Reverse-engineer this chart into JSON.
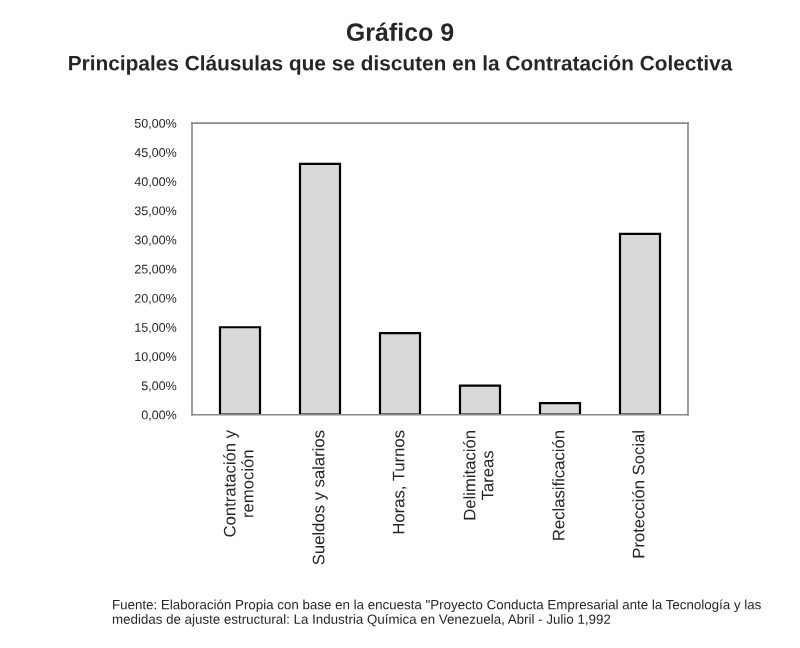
{
  "chart_data": {
    "type": "bar",
    "title": "Gráfico 9",
    "subtitle": "Principales Cláusulas que se discuten en la Contratación Colectiva",
    "categories": [
      "Contratación y\nremoción",
      "Sueldos y salarios",
      "Horas, Turnos",
      "Delimitación\nTareas",
      "Reclasificación",
      "Protección Social"
    ],
    "values": [
      15,
      43,
      14,
      5,
      2,
      31
    ],
    "color": "#d9d9d9",
    "ylim": [
      0,
      50
    ],
    "yticks": [
      {
        "value": 0,
        "label": "0,00%"
      },
      {
        "value": 5,
        "label": "5,00%"
      },
      {
        "value": 10,
        "label": "10,00%"
      },
      {
        "value": 15,
        "label": "15,00%"
      },
      {
        "value": 20,
        "label": "20,00%"
      },
      {
        "value": 25,
        "label": "25,00%"
      },
      {
        "value": 30,
        "label": "30,00%"
      },
      {
        "value": 35,
        "label": "35,00%"
      },
      {
        "value": 40,
        "label": "40,00%"
      },
      {
        "value": 45,
        "label": "45,00%"
      },
      {
        "value": 50,
        "label": "50,00%"
      }
    ],
    "grid": false,
    "annotations": [
      "Fuente: Elaboración Propia con base en la encuesta \"Proyecto Conducta Empresarial ante la Tecnología y las medidas de ajuste estructural: La Industria Química en Venezuela, Abril - Julio 1,992"
    ]
  }
}
